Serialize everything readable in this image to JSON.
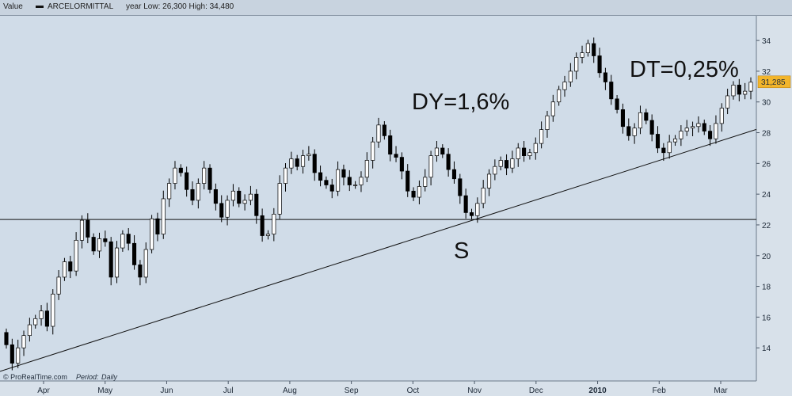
{
  "header": {
    "value_label": "Value",
    "instrument": "ARCELORMITTAL",
    "range_text": "year Low: 26,300 High: 34,480"
  },
  "footer": {
    "source": "© ProRealTime.com",
    "period_label": "Period:",
    "period_value": "Daily"
  },
  "last_price_tag": "31,285",
  "colors": {
    "plot_background": "#d0dce8",
    "up_candle": "#ffffff",
    "down_candle": "#000000",
    "price_tag": "#f2b52b"
  },
  "chart_data": {
    "type": "candlestick",
    "ylim": [
      12,
      35.5
    ],
    "y_ticks": [
      14,
      16,
      18,
      20,
      22,
      24,
      26,
      28,
      30,
      32,
      34
    ],
    "x_month_labels": [
      "Apr",
      "May",
      "Jun",
      "Jul",
      "Aug",
      "Sep",
      "Oct",
      "Nov",
      "Dec",
      "2010",
      "Feb",
      "Mar"
    ],
    "series": [
      {
        "close": [
          14.2,
          13.0,
          14.0,
          14.8,
          15.5,
          15.9,
          16.4,
          15.4,
          17.5,
          18.6,
          19.6,
          19.0,
          21.0,
          22.3,
          21.2,
          20.3,
          21.1,
          20.9,
          18.6,
          20.5,
          21.4,
          20.8,
          19.4,
          18.6,
          20.4,
          22.4,
          21.4,
          23.7,
          24.7,
          25.7,
          25.4,
          24.3,
          23.6,
          24.7,
          25.7,
          24.3,
          23.4,
          22.5,
          23.6,
          24.2,
          23.4,
          23.6,
          24.0,
          22.6,
          21.3,
          21.4,
          22.7,
          24.7,
          25.7,
          26.3,
          25.8,
          26.5,
          26.6,
          25.4,
          24.9,
          24.6,
          24.2,
          25.6,
          25.1,
          24.6,
          24.6,
          25.1,
          26.2,
          27.4,
          28.5,
          27.8,
          26.6,
          26.4,
          25.5,
          24.2,
          23.8,
          24.5,
          25.1,
          26.5,
          27.0,
          26.6,
          25.6,
          25.0,
          23.9,
          22.8,
          22.6,
          23.4,
          24.4,
          25.3,
          25.8,
          26.2,
          25.7,
          26.3,
          27.0,
          26.5,
          26.7,
          27.3,
          28.2,
          29.1,
          30.0,
          30.8,
          31.3,
          32.0,
          32.9,
          33.2,
          33.8,
          33.0,
          31.9,
          31.3,
          30.2,
          29.5,
          28.4,
          27.8,
          28.3,
          29.3,
          28.8,
          27.9,
          27.0,
          26.7,
          27.4,
          27.6,
          28.1,
          28.3,
          28.4,
          28.6,
          28.1,
          27.6,
          28.6,
          29.6,
          30.4,
          31.1,
          30.5,
          30.7,
          31.285
        ]
      }
    ],
    "annotations": [
      {
        "text": "DY=1,6%"
      },
      {
        "text": "DT=0,25%"
      },
      {
        "text": "S"
      }
    ],
    "lines": [
      {
        "kind": "horizontal",
        "y": 22.35
      },
      {
        "kind": "trendline",
        "from_index": 0,
        "from_y": 12.6,
        "to_index": 128,
        "to_y": 28.1
      }
    ]
  }
}
